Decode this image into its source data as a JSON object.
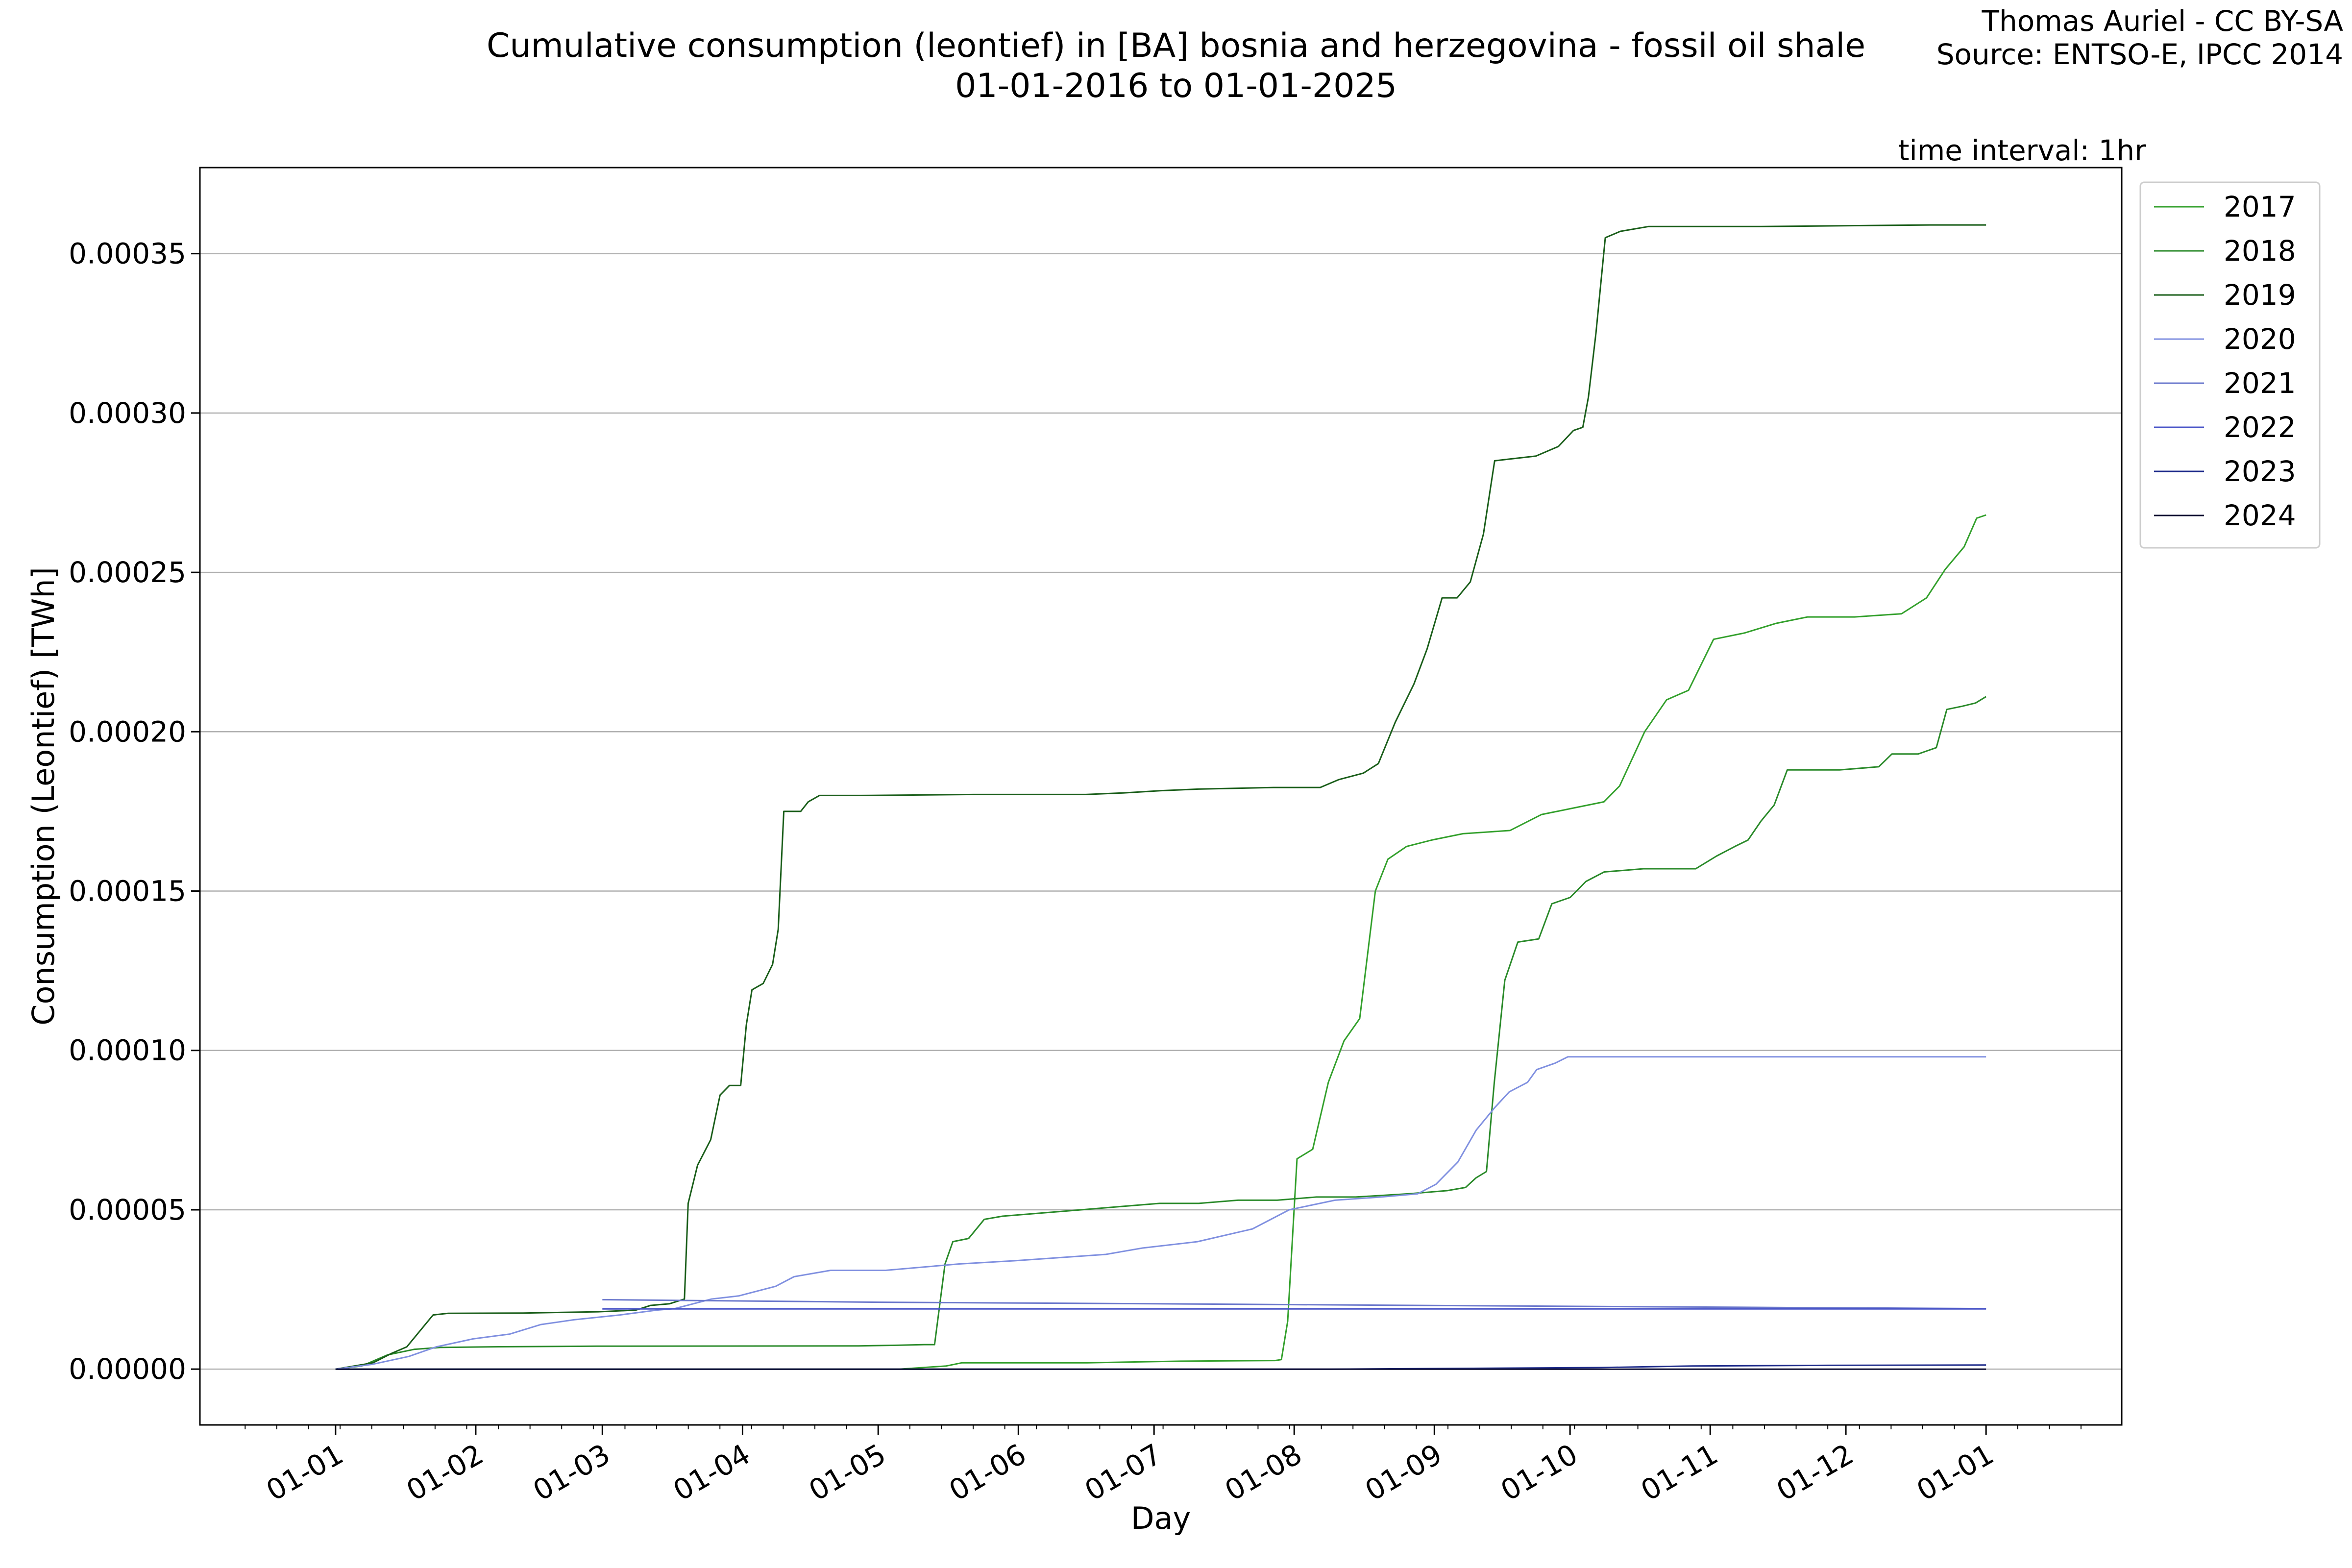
{
  "header": {
    "title_line1": "Cumulative consumption (leontief) in [BA] bosnia and herzegovina - fossil oil shale",
    "title_line2": "01-01-2016 to 01-01-2025",
    "credit_line1": "Thomas Auriel - CC BY-SA",
    "credit_line2": "Source: ENTSO-E, IPCC 2014",
    "interval": "time interval: 1hr"
  },
  "chart_data": {
    "type": "line",
    "title": "Cumulative consumption (leontief) in [BA] bosnia and herzegovina - fossil oil shale",
    "subtitle": "01-01-2016 to 01-01-2025",
    "xlabel": "Day",
    "ylabel": "Consumption (Leontief) [TWh]",
    "x_ticks": [
      "01-01",
      "01-02",
      "01-03",
      "01-04",
      "01-05",
      "01-06",
      "01-07",
      "01-08",
      "01-09",
      "01-10",
      "01-11",
      "01-12",
      "01-01"
    ],
    "y_ticks": [
      "0.00000",
      "0.00005",
      "0.00010",
      "0.00015",
      "0.00020",
      "0.00025",
      "0.00030",
      "0.00035"
    ],
    "ylim": [
      -1.75e-05,
      0.000377
    ],
    "grid": "horizontal",
    "legend_position": "outside-top-right",
    "x_unit": "day of year (0 = 01-01)",
    "series": [
      {
        "name": "2017",
        "color": "#33a02c",
        "points": [
          [
            0,
            0
          ],
          [
            180,
            0
          ],
          [
            195,
            1e-06
          ],
          [
            200,
            2e-06
          ],
          [
            240,
            2e-06
          ],
          [
            270,
            2.5e-06
          ],
          [
            300,
            2.7e-06
          ],
          [
            302,
            3e-06
          ],
          [
            304,
            1.5e-05
          ],
          [
            307,
            6.6e-05
          ],
          [
            312,
            6.9e-05
          ],
          [
            317,
            9e-05
          ],
          [
            322,
            0.000103
          ],
          [
            327,
            0.00011
          ],
          [
            332,
            0.00015
          ],
          [
            336,
            0.00016
          ],
          [
            342,
            0.000164
          ],
          [
            350,
            0.000166
          ],
          [
            360,
            0.000168
          ],
          [
            375,
            0.000169
          ],
          [
            385,
            0.000174
          ],
          [
            395,
            0.000176
          ],
          [
            405,
            0.000178
          ],
          [
            410,
            0.000183
          ],
          [
            418,
            0.0002
          ],
          [
            425,
            0.00021
          ],
          [
            432,
            0.000213
          ],
          [
            440,
            0.000229
          ],
          [
            450,
            0.000231
          ],
          [
            460,
            0.000234
          ],
          [
            470,
            0.000236
          ],
          [
            485,
            0.000236
          ],
          [
            500,
            0.000237
          ],
          [
            508,
            0.000242
          ],
          [
            514,
            0.000251
          ],
          [
            520,
            0.000258
          ],
          [
            524,
            0.000267
          ],
          [
            527,
            0.000268
          ]
        ]
      },
      {
        "name": "2018",
        "color": "#2a8a2a",
        "points": [
          [
            0,
            0
          ],
          [
            10,
            1e-06
          ],
          [
            20,
            4.5e-06
          ],
          [
            30,
            6.2e-06
          ],
          [
            40,
            6.8e-06
          ],
          [
            60,
            7e-06
          ],
          [
            100,
            7.2e-06
          ],
          [
            200,
            7.3e-06
          ],
          [
            215,
            7.5e-06
          ],
          [
            225,
            7.7e-06
          ],
          [
            229,
            7.7e-06
          ],
          [
            233,
            3.3e-05
          ],
          [
            236,
            4e-05
          ],
          [
            242,
            4.1e-05
          ],
          [
            248,
            4.7e-05
          ],
          [
            255,
            4.8e-05
          ],
          [
            270,
            4.9e-05
          ],
          [
            285,
            5e-05
          ],
          [
            300,
            5.1e-05
          ],
          [
            315,
            5.2e-05
          ],
          [
            330,
            5.2e-05
          ],
          [
            345,
            5.3e-05
          ],
          [
            360,
            5.3e-05
          ],
          [
            375,
            5.4e-05
          ],
          [
            390,
            5.4e-05
          ],
          [
            410,
            5.5e-05
          ],
          [
            425,
            5.6e-05
          ],
          [
            432,
            5.7e-05
          ],
          [
            436,
            6e-05
          ],
          [
            440,
            6.2e-05
          ],
          [
            443,
            9e-05
          ],
          [
            447,
            0.000122
          ],
          [
            452,
            0.000134
          ],
          [
            460,
            0.000135
          ],
          [
            465,
            0.000146
          ],
          [
            472,
            0.000148
          ],
          [
            478,
            0.000153
          ],
          [
            485,
            0.000156
          ],
          [
            500,
            0.000157
          ],
          [
            520,
            0.000157
          ],
          [
            528,
            0.000161
          ],
          [
            535,
            0.000164
          ],
          [
            540,
            0.000166
          ],
          [
            545,
            0.000172
          ],
          [
            550,
            0.000177
          ],
          [
            555,
            0.000188
          ],
          [
            575,
            0.000188
          ],
          [
            590,
            0.000189
          ],
          [
            595,
            0.000193
          ],
          [
            605,
            0.000193
          ],
          [
            612,
            0.000195
          ],
          [
            616,
            0.000207
          ],
          [
            622,
            0.000208
          ],
          [
            627,
            0.000209
          ],
          [
            631,
            0.000211
          ]
        ]
      },
      {
        "name": "2019",
        "color": "#1a5e1a",
        "points": [
          [
            0,
            0
          ],
          [
            20,
            2e-06
          ],
          [
            30,
            5e-06
          ],
          [
            38,
            7e-06
          ],
          [
            45,
            1.2e-05
          ],
          [
            52,
            1.7e-05
          ],
          [
            60,
            1.75e-05
          ],
          [
            100,
            1.76e-05
          ],
          [
            140,
            1.8e-05
          ],
          [
            160,
            1.85e-05
          ],
          [
            168,
            2e-05
          ],
          [
            178,
            2.05e-05
          ],
          [
            186,
            2.2e-05
          ],
          [
            188,
            5.2e-05
          ],
          [
            193,
            6.4e-05
          ],
          [
            200,
            7.2e-05
          ],
          [
            205,
            8.6e-05
          ],
          [
            210,
            8.9e-05
          ],
          [
            216,
            8.9e-05
          ],
          [
            219,
            0.000108
          ],
          [
            222,
            0.000119
          ],
          [
            228,
            0.000121
          ],
          [
            233,
            0.000127
          ],
          [
            236,
            0.000138
          ],
          [
            239,
            0.000175
          ],
          [
            248,
            0.000175
          ],
          [
            252,
            0.000178
          ],
          [
            258,
            0.00018
          ],
          [
            280,
            0.00018
          ],
          [
            340,
            0.0001803
          ],
          [
            400,
            0.0001803
          ],
          [
            420,
            0.0001808
          ],
          [
            440,
            0.0001815
          ],
          [
            460,
            0.000182
          ],
          [
            500,
            0.0001825
          ],
          [
            525,
            0.0001825
          ],
          [
            535,
            0.000185
          ],
          [
            548,
            0.000187
          ],
          [
            556,
            0.00019
          ],
          [
            565,
            0.000203
          ],
          [
            575,
            0.000215
          ],
          [
            582,
            0.000226
          ],
          [
            590,
            0.000242
          ],
          [
            598,
            0.000242
          ],
          [
            605,
            0.000247
          ],
          [
            612,
            0.000262
          ],
          [
            618,
            0.000285
          ],
          [
            625,
            0.0002855
          ],
          [
            640,
            0.0002865
          ],
          [
            652,
            0.0002895
          ],
          [
            660,
            0.0002945
          ],
          [
            665,
            0.0002955
          ],
          [
            668,
            0.000305
          ],
          [
            672,
            0.000325
          ],
          [
            677,
            0.000355
          ],
          [
            685,
            0.000357
          ],
          [
            700,
            0.0003585
          ],
          [
            760,
            0.0003585
          ],
          [
            850,
            0.000359
          ],
          [
            880,
            0.000359
          ]
        ]
      },
      {
        "name": "2020",
        "color": "#8090e0",
        "points": [
          [
            0,
            0
          ],
          [
            20,
            1.5e-06
          ],
          [
            40,
            4e-06
          ],
          [
            55,
            7e-06
          ],
          [
            75,
            9.5e-06
          ],
          [
            95,
            1.1e-05
          ],
          [
            112,
            1.4e-05
          ],
          [
            130,
            1.55e-05
          ],
          [
            155,
            1.7e-05
          ],
          [
            175,
            1.85e-05
          ],
          [
            185,
            1.9e-05
          ],
          [
            205,
            2.2e-05
          ],
          [
            220,
            2.3e-05
          ],
          [
            240,
            2.6e-05
          ],
          [
            250,
            2.9e-05
          ],
          [
            270,
            3.1e-05
          ],
          [
            300,
            3.1e-05
          ],
          [
            320,
            3.2e-05
          ],
          [
            340,
            3.3e-05
          ],
          [
            370,
            3.4e-05
          ],
          [
            395,
            3.5e-05
          ],
          [
            420,
            3.6e-05
          ],
          [
            440,
            3.8e-05
          ],
          [
            470,
            4e-05
          ],
          [
            500,
            4.4e-05
          ],
          [
            520,
            5e-05
          ],
          [
            545,
            5.3e-05
          ],
          [
            570,
            5.4e-05
          ],
          [
            590,
            5.5e-05
          ],
          [
            600,
            5.8e-05
          ],
          [
            612,
            6.5e-05
          ],
          [
            622,
            7.5e-05
          ],
          [
            632,
            8.2e-05
          ],
          [
            640,
            8.7e-05
          ],
          [
            650,
            9e-05
          ],
          [
            655,
            9.4e-05
          ],
          [
            665,
            9.6e-05
          ],
          [
            672,
            9.8e-05
          ],
          [
            700,
            9.8e-05
          ],
          [
            800,
            9.8e-05
          ],
          [
            900,
            9.8e-05
          ]
        ]
      },
      {
        "name": "2021",
        "color": "#6b78cc",
        "points": [
          [
            0,
            2.18e-05
          ],
          [
            60,
            2.1e-05
          ],
          [
            120,
            2.05e-05
          ],
          [
            200,
            1.98e-05
          ],
          [
            260,
            1.93e-05
          ],
          [
            300,
            1.9e-05
          ]
        ]
      },
      {
        "name": "2022",
        "color": "#4a55c8",
        "points": [
          [
            0,
            1.89e-05
          ],
          [
            300,
            1.89e-05
          ]
        ]
      },
      {
        "name": "2023",
        "color": "#202d8c",
        "points": [
          [
            0,
            0
          ],
          [
            220,
            0
          ],
          [
            280,
            5e-07
          ],
          [
            300,
            1e-06
          ],
          [
            330,
            1.2e-06
          ],
          [
            365,
            1.3e-06
          ]
        ]
      },
      {
        "name": "2024",
        "color": "#0a0a30",
        "points": [
          [
            0,
            0
          ],
          [
            365,
            0
          ]
        ]
      }
    ]
  }
}
